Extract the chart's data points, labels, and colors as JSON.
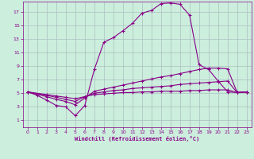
{
  "xlabel": "Windchill (Refroidissement éolien,°C)",
  "background_color": "#cceedd",
  "grid_color": "#aabfbf",
  "line_color": "#880088",
  "xlim": [
    -0.5,
    23.5
  ],
  "ylim": [
    0,
    18.5
  ],
  "xticks": [
    0,
    1,
    2,
    3,
    4,
    5,
    6,
    7,
    8,
    9,
    10,
    11,
    12,
    13,
    14,
    15,
    16,
    17,
    18,
    19,
    20,
    21,
    22,
    23
  ],
  "yticks": [
    1,
    3,
    5,
    7,
    9,
    11,
    13,
    15,
    17
  ],
  "curve1_x": [
    0,
    1,
    2,
    3,
    4,
    5,
    6,
    7,
    8,
    9,
    10,
    11,
    12,
    13,
    14,
    15,
    16,
    17,
    18,
    19,
    20,
    21,
    22,
    23
  ],
  "curve1_y": [
    5.2,
    4.7,
    4.0,
    3.2,
    3.0,
    1.7,
    3.2,
    8.5,
    12.5,
    13.2,
    14.2,
    15.3,
    16.8,
    17.2,
    18.2,
    18.3,
    18.1,
    16.5,
    9.2,
    8.5,
    6.8,
    5.2,
    5.1,
    5.2
  ],
  "curve2_x": [
    0,
    2,
    3,
    4,
    5,
    6,
    7,
    8,
    9,
    10,
    11,
    12,
    13,
    14,
    15,
    16,
    17,
    18,
    19,
    20,
    21,
    22,
    23
  ],
  "curve2_y": [
    5.2,
    4.5,
    4.1,
    3.8,
    3.3,
    4.3,
    5.3,
    5.6,
    5.9,
    6.2,
    6.5,
    6.8,
    7.1,
    7.4,
    7.6,
    7.9,
    8.2,
    8.5,
    8.7,
    8.7,
    8.6,
    5.1,
    5.2
  ],
  "curve3_x": [
    0,
    2,
    3,
    4,
    5,
    6,
    7,
    8,
    9,
    10,
    11,
    12,
    13,
    14,
    15,
    16,
    17,
    18,
    19,
    20,
    21,
    22,
    23
  ],
  "curve3_y": [
    5.2,
    4.7,
    4.4,
    4.1,
    3.8,
    4.5,
    5.0,
    5.2,
    5.4,
    5.5,
    5.7,
    5.8,
    5.9,
    6.0,
    6.1,
    6.3,
    6.4,
    6.5,
    6.6,
    6.7,
    6.8,
    5.1,
    5.2
  ],
  "curve4_x": [
    0,
    2,
    3,
    4,
    5,
    6,
    7,
    8,
    9,
    10,
    11,
    12,
    13,
    14,
    15,
    16,
    17,
    18,
    19,
    20,
    21,
    22,
    23
  ],
  "curve4_y": [
    5.2,
    4.8,
    4.6,
    4.4,
    4.2,
    4.5,
    4.8,
    4.9,
    5.0,
    5.1,
    5.1,
    5.2,
    5.2,
    5.3,
    5.3,
    5.3,
    5.4,
    5.4,
    5.5,
    5.5,
    5.5,
    5.1,
    5.2
  ]
}
